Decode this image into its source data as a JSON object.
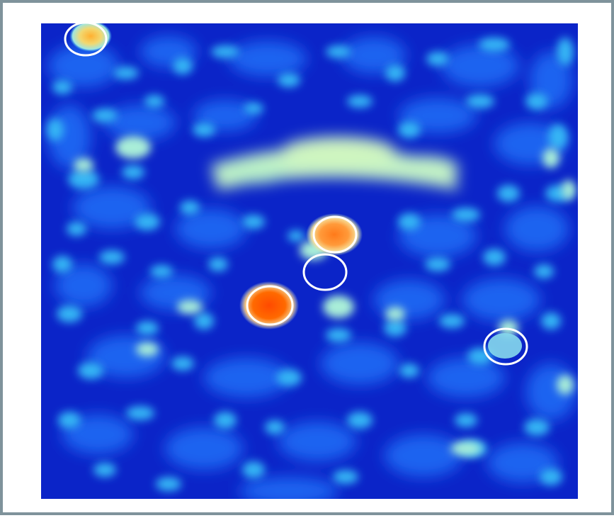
{
  "image": {
    "kind": "heatmap-with-circled-sources",
    "colormap": "jet",
    "colors": {
      "background": "#0b24c8",
      "low": "#1e63f0",
      "mid": "#36b5f5",
      "high_mid": "#b8f0c8",
      "hot": "#f57a1e",
      "hottest": "#ff5a00",
      "frame_border": "#7f939b",
      "circle_stroke": "#ffffff"
    },
    "marked_sources": [
      {
        "id": "source-top-left",
        "intensity": "medium-high"
      },
      {
        "id": "source-center-upper",
        "intensity": "high"
      },
      {
        "id": "source-center-empty",
        "intensity": "low"
      },
      {
        "id": "source-center-brightest",
        "intensity": "highest"
      },
      {
        "id": "source-right",
        "intensity": "medium"
      }
    ],
    "features": [
      {
        "id": "arc-band",
        "description_visible": false
      }
    ]
  }
}
